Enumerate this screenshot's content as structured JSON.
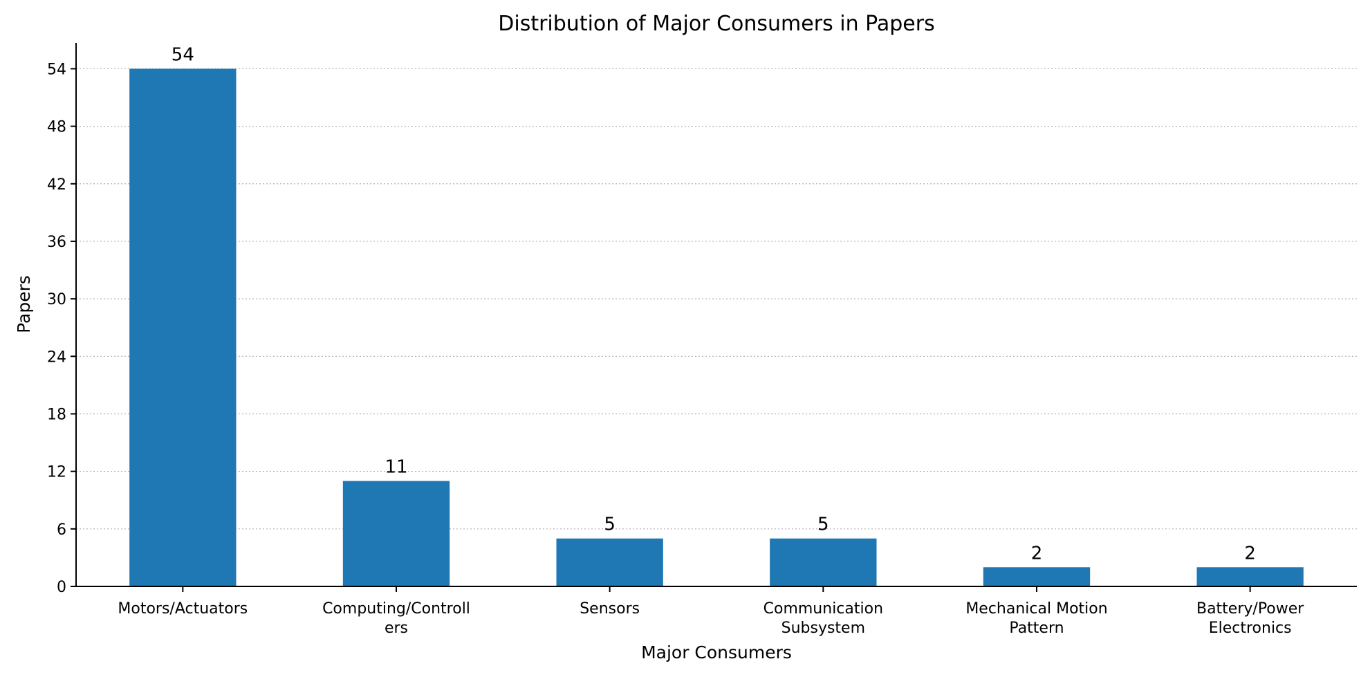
{
  "chart_data": {
    "type": "bar",
    "title": "Distribution of Major Consumers in Papers",
    "xlabel": "Major Consumers",
    "ylabel": "Papers",
    "categories": [
      [
        "Motors/Actuators"
      ],
      [
        "Computing/Controll",
        "ers"
      ],
      [
        "Sensors"
      ],
      [
        "Communication",
        "Subsystem"
      ],
      [
        "Mechanical Motion",
        "Pattern"
      ],
      [
        "Battery/Power",
        "Electronics"
      ]
    ],
    "values": [
      54,
      11,
      5,
      5,
      2,
      2
    ],
    "data_labels": [
      "54",
      "11",
      "5",
      "5",
      "2",
      "2"
    ],
    "yticks": [
      0,
      6,
      12,
      18,
      24,
      30,
      36,
      42,
      48,
      54
    ],
    "ylim": [
      0,
      56.7
    ],
    "grid": "y-dotted",
    "bar_color": "#1f77b4"
  }
}
